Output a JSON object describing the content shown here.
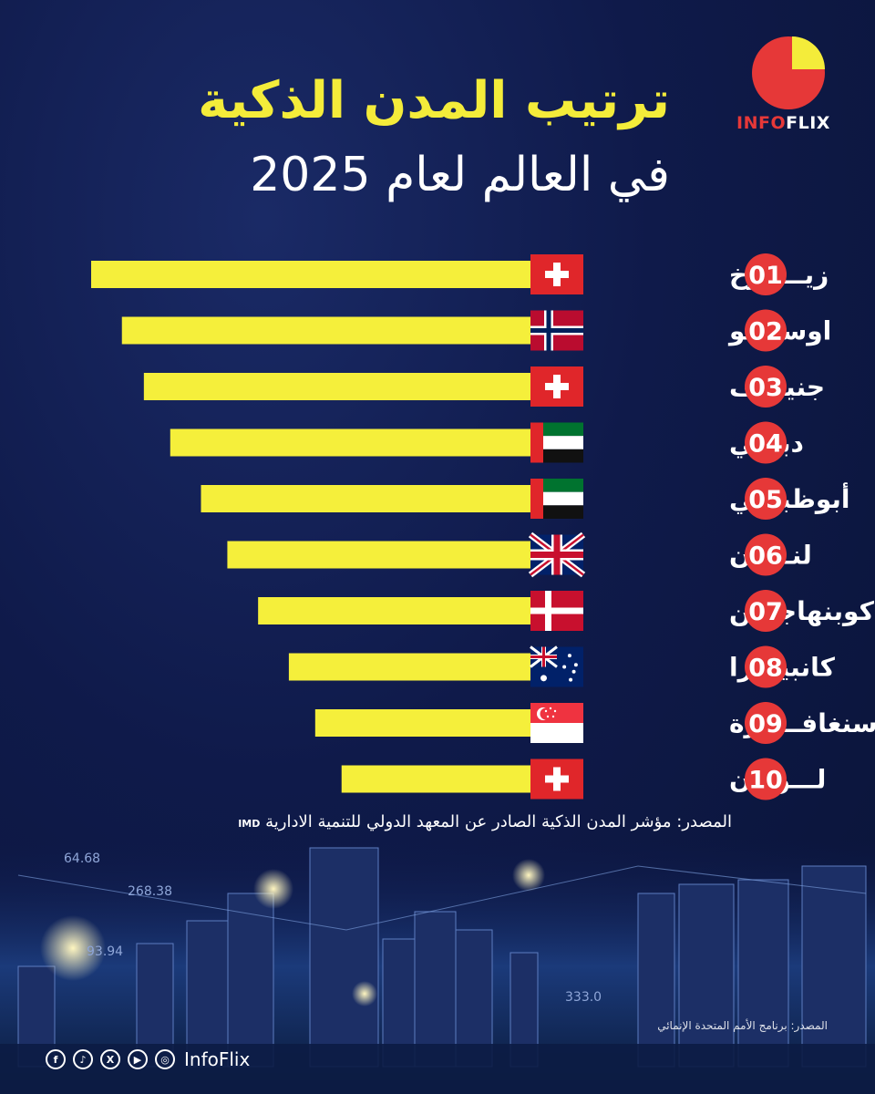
{
  "header": {
    "title_line1": "ترتيب المدن الذكية",
    "title_line2": "في العالم لعام 2025"
  },
  "logo": {
    "brand_part1": "INFO",
    "brand_part2": "FLIX"
  },
  "colors": {
    "bar": "#f5ef3b",
    "badge": "#e63838",
    "title_accent": "#f4ec3a",
    "background": "#0f1a4a"
  },
  "chart_data": {
    "type": "bar",
    "orientation": "horizontal",
    "title": "ترتيب المدن الذكية في العالم لعام 2025",
    "categories": [
      "زيـــورخ",
      "اوسلـــو",
      "جنيـــف",
      "دبـــي",
      "أبوظبـــي",
      "لنـــدن",
      "كوبنهاجـــن",
      "كانبيـــرا",
      "سنغافـــورة",
      "لـــوزان"
    ],
    "ranks": [
      "01",
      "02",
      "03",
      "04",
      "05",
      "06",
      "07",
      "08",
      "09",
      "10"
    ],
    "flags": [
      "switzerland",
      "norway",
      "switzerland",
      "uae",
      "uae",
      "uk",
      "denmark",
      "australia",
      "singapore",
      "switzerland"
    ],
    "values": [
      10,
      9.3,
      8.8,
      8.2,
      7.5,
      6.9,
      6.2,
      5.5,
      4.9,
      4.3
    ],
    "value_unit": "relative rank score (bar length, no axis shown)",
    "xlim": [
      0,
      10
    ],
    "grid": false,
    "legend": "none"
  },
  "source": {
    "label": "المصدر: مؤشر المدن الذكية الصادر عن المعهد الدولي للتنمية الادارية",
    "imd": "IMD"
  },
  "image_credit": "المصدر: برنامج الأمم المتحدة الإنمائي",
  "skyline_readouts": [
    "64.68",
    "268.38",
    "93.94",
    "333.0"
  ],
  "social": {
    "icons": [
      "facebook-icon",
      "tiktok-icon",
      "x-icon",
      "youtube-icon",
      "instagram-icon"
    ],
    "handle": "InfoFlix"
  }
}
